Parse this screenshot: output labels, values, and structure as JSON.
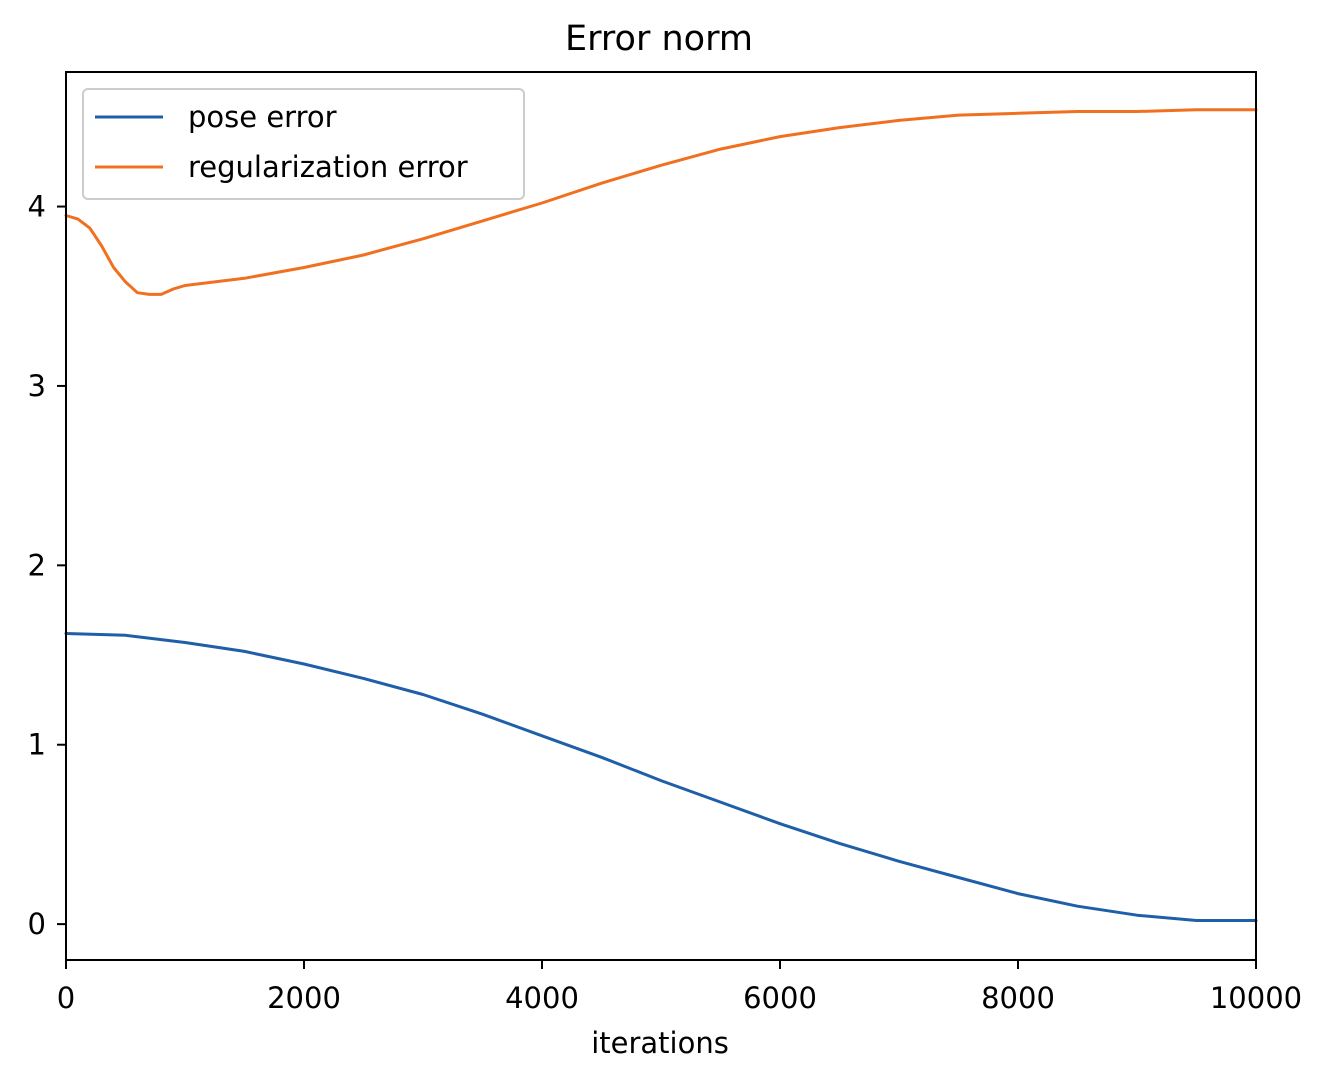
{
  "chart_data": {
    "type": "line",
    "title": "Error norm",
    "xlabel": "iterations",
    "ylabel": "",
    "xlim": [
      0,
      10000
    ],
    "ylim": [
      -0.2,
      4.75
    ],
    "xticks": [
      0,
      2000,
      4000,
      6000,
      8000,
      10000
    ],
    "xtick_labels": [
      "0",
      "2000",
      "4000",
      "6000",
      "8000",
      "10000"
    ],
    "yticks": [
      0,
      1,
      2,
      3,
      4
    ],
    "ytick_labels": [
      "0",
      "1",
      "2",
      "3",
      "4"
    ],
    "grid": false,
    "legend_position": "upper left",
    "series": [
      {
        "name": "pose error",
        "color": "#1f5fa8",
        "x": [
          0,
          500,
          1000,
          1500,
          2000,
          2500,
          3000,
          3500,
          4000,
          4500,
          5000,
          5500,
          6000,
          6500,
          7000,
          7500,
          8000,
          8500,
          9000,
          9500,
          10000
        ],
        "y": [
          1.62,
          1.61,
          1.57,
          1.52,
          1.45,
          1.37,
          1.28,
          1.17,
          1.05,
          0.93,
          0.8,
          0.68,
          0.56,
          0.45,
          0.35,
          0.26,
          0.17,
          0.1,
          0.05,
          0.02,
          0.02
        ]
      },
      {
        "name": "regularization error",
        "color": "#f07020",
        "x": [
          0,
          100,
          200,
          300,
          400,
          500,
          600,
          700,
          800,
          900,
          1000,
          1500,
          2000,
          2500,
          3000,
          3500,
          4000,
          4500,
          5000,
          5500,
          6000,
          6500,
          7000,
          7500,
          8000,
          8500,
          9000,
          9500,
          10000
        ],
        "y": [
          3.95,
          3.93,
          3.88,
          3.78,
          3.66,
          3.58,
          3.52,
          3.51,
          3.51,
          3.54,
          3.56,
          3.6,
          3.66,
          3.73,
          3.82,
          3.92,
          4.02,
          4.13,
          4.23,
          4.32,
          4.39,
          4.44,
          4.48,
          4.51,
          4.52,
          4.53,
          4.53,
          4.54,
          4.54
        ]
      }
    ]
  }
}
